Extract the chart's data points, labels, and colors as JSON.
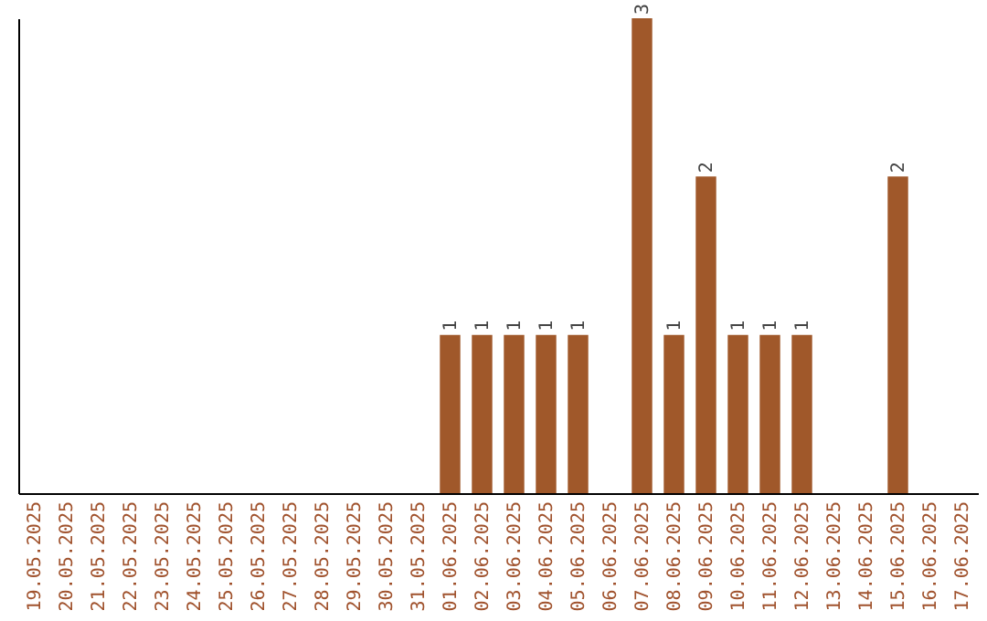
{
  "chart_data": {
    "type": "bar",
    "categories": [
      "19.05.2025",
      "20.05.2025",
      "21.05.2025",
      "22.05.2025",
      "23.05.2025",
      "24.05.2025",
      "25.05.2025",
      "26.05.2025",
      "27.05.2025",
      "28.05.2025",
      "29.05.2025",
      "30.05.2025",
      "31.05.2025",
      "01.06.2025",
      "02.06.2025",
      "03.06.2025",
      "04.06.2025",
      "05.06.2025",
      "06.06.2025",
      "07.06.2025",
      "08.06.2025",
      "09.06.2025",
      "10.06.2025",
      "11.06.2025",
      "12.06.2025",
      "13.06.2025",
      "14.06.2025",
      "15.06.2025",
      "16.06.2025",
      "17.06.2025"
    ],
    "values": [
      null,
      null,
      null,
      null,
      null,
      null,
      null,
      null,
      null,
      null,
      null,
      null,
      null,
      1,
      1,
      1,
      1,
      1,
      null,
      3,
      1,
      2,
      1,
      1,
      1,
      null,
      null,
      2,
      null,
      null
    ],
    "value_labels": [
      null,
      null,
      null,
      null,
      null,
      null,
      null,
      null,
      null,
      null,
      null,
      null,
      null,
      "1",
      "1",
      "1",
      "1",
      "1",
      null,
      "3",
      "1",
      "2",
      "1",
      "1",
      "1",
      null,
      null,
      "2",
      null,
      null
    ],
    "color": "#a0582a",
    "grid": false,
    "tick_labels": "x"
  }
}
